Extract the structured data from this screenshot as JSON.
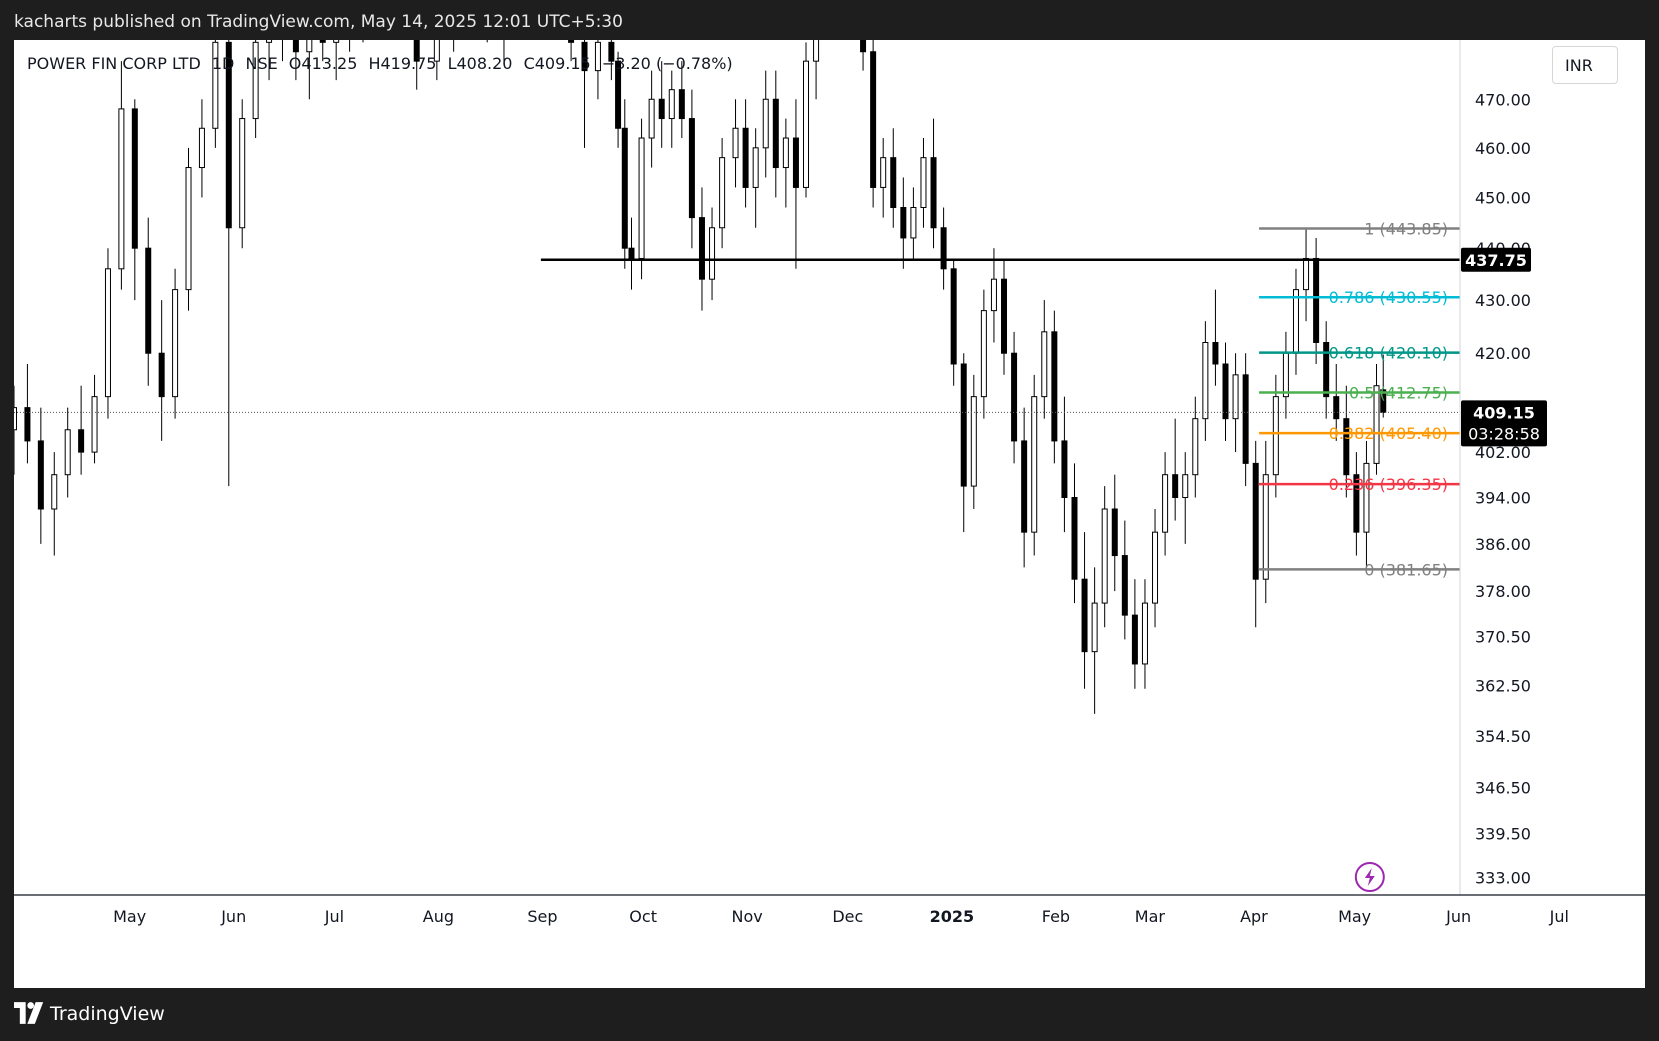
{
  "header": {
    "publish_text": "kacharts published on TradingView.com, May 14, 2025 12:01 UTC+5:30"
  },
  "legend": {
    "symbol": "POWER FIN CORP LTD",
    "interval": "1D",
    "exchange": "NSE",
    "open": "O413.25",
    "high": "H419.75",
    "low": "L408.20",
    "close": "C409.15",
    "change": "−3.20 (−0.78%)"
  },
  "currency": "INR",
  "footer": {
    "brand": "TradingView"
  },
  "colors": {
    "up": "#ffffff",
    "down": "#000000",
    "fib_1": "#808080",
    "fib_0786": "#00bcd4",
    "fib_0618": "#009688",
    "fib_05": "#4caf50",
    "fib_0382": "#ff9800",
    "fib_0236": "#f23645",
    "fib_0": "#808080",
    "event_icon": "#9c27b0"
  },
  "chart_data": {
    "type": "candlestick",
    "y_axis": {
      "ticks": [
        "470.00",
        "460.00",
        "450.00",
        "440.00",
        "430.00",
        "420.00",
        "402.00",
        "394.00",
        "386.00",
        "378.00",
        "370.50",
        "362.50",
        "354.50",
        "346.50",
        "339.50",
        "333.00"
      ],
      "tick_values": [
        470,
        460,
        450,
        440,
        430,
        420,
        402,
        394,
        386,
        378,
        370.5,
        362.5,
        354.5,
        346.5,
        339.5,
        333
      ],
      "range": [
        330.4,
        482.5
      ],
      "scale": "log"
    },
    "x_axis": {
      "labels": [
        "May",
        "Jun",
        "Jul",
        "Aug",
        "Sep",
        "Oct",
        "Nov",
        "Dec",
        "2025",
        "Feb",
        "Mar",
        "Apr",
        "May",
        "Jun",
        "Jul"
      ],
      "label_dates": [
        "2024-05-01",
        "2024-06-01",
        "2024-07-01",
        "2024-08-01",
        "2024-09-01",
        "2024-10-01",
        "2024-11-01",
        "2024-12-01",
        "2025-01-01",
        "2025-02-01",
        "2025-03-01",
        "2025-04-01",
        "2025-05-01",
        "2025-06-01",
        "2025-07-01"
      ],
      "range": [
        "2024-04-01",
        "2025-07-31"
      ]
    },
    "horizontal_line": {
      "value": 437.75,
      "label": "437.75",
      "from": "2024-09-05"
    },
    "last_price": {
      "value": 409.15,
      "label": "409.15",
      "countdown": "03:28:58"
    },
    "fibonacci": {
      "from_date": "2025-04-07",
      "to_date": "2025-06-28",
      "levels": [
        {
          "ratio": "1",
          "value": 443.85,
          "label": "1 (443.85)",
          "color": "#808080"
        },
        {
          "ratio": "0.786",
          "value": 430.55,
          "label": "0.786 (430.55)",
          "color": "#00bcd4"
        },
        {
          "ratio": "0.618",
          "value": 420.1,
          "label": "0.618 (420.10)",
          "color": "#009688"
        },
        {
          "ratio": "0.5",
          "value": 412.75,
          "label": "0.5 (412.75)",
          "color": "#4caf50"
        },
        {
          "ratio": "0.382",
          "value": 405.4,
          "label": "0.382 (405.40)",
          "color": "#ff9800"
        },
        {
          "ratio": "0.236",
          "value": 396.35,
          "label": "0.236 (396.35)",
          "color": "#f23645"
        },
        {
          "ratio": "0",
          "value": 381.65,
          "label": "0 (381.65)",
          "color": "#808080"
        }
      ]
    },
    "event_marker_date": "2025-05-10",
    "candles": [
      {
        "d": "2024-04-01",
        "o": 406,
        "h": 414,
        "l": 398,
        "c": 410
      },
      {
        "d": "2024-04-05",
        "o": 410,
        "h": 418,
        "l": 400,
        "c": 404
      },
      {
        "d": "2024-04-09",
        "o": 404,
        "h": 410,
        "l": 386,
        "c": 392
      },
      {
        "d": "2024-04-13",
        "o": 392,
        "h": 402,
        "l": 384,
        "c": 398
      },
      {
        "d": "2024-04-17",
        "o": 398,
        "h": 410,
        "l": 394,
        "c": 406
      },
      {
        "d": "2024-04-21",
        "o": 406,
        "h": 414,
        "l": 398,
        "c": 402
      },
      {
        "d": "2024-04-25",
        "o": 402,
        "h": 416,
        "l": 400,
        "c": 412
      },
      {
        "d": "2024-04-29",
        "o": 412,
        "h": 440,
        "l": 408,
        "c": 436
      },
      {
        "d": "2024-05-03",
        "o": 436,
        "h": 478,
        "l": 432,
        "c": 468
      },
      {
        "d": "2024-05-07",
        "o": 468,
        "h": 470,
        "l": 430,
        "c": 440
      },
      {
        "d": "2024-05-11",
        "o": 440,
        "h": 446,
        "l": 414,
        "c": 420
      },
      {
        "d": "2024-05-15",
        "o": 420,
        "h": 430,
        "l": 404,
        "c": 412
      },
      {
        "d": "2024-05-19",
        "o": 412,
        "h": 436,
        "l": 408,
        "c": 432
      },
      {
        "d": "2024-05-23",
        "o": 432,
        "h": 460,
        "l": 428,
        "c": 456
      },
      {
        "d": "2024-05-27",
        "o": 456,
        "h": 470,
        "l": 450,
        "c": 464
      },
      {
        "d": "2024-05-31",
        "o": 464,
        "h": 488,
        "l": 460,
        "c": 482
      },
      {
        "d": "2024-06-04",
        "o": 482,
        "h": 486,
        "l": 396,
        "c": 444
      },
      {
        "d": "2024-06-08",
        "o": 444,
        "h": 470,
        "l": 440,
        "c": 466
      },
      {
        "d": "2024-06-12",
        "o": 466,
        "h": 488,
        "l": 462,
        "c": 482
      },
      {
        "d": "2024-06-16",
        "o": 482,
        "h": 490,
        "l": 474,
        "c": 486
      },
      {
        "d": "2024-06-20",
        "o": 486,
        "h": 492,
        "l": 478,
        "c": 484
      },
      {
        "d": "2024-06-24",
        "o": 484,
        "h": 490,
        "l": 474,
        "c": 480
      },
      {
        "d": "2024-06-28",
        "o": 480,
        "h": 488,
        "l": 470,
        "c": 486
      },
      {
        "d": "2024-07-02",
        "o": 486,
        "h": 492,
        "l": 478,
        "c": 482
      },
      {
        "d": "2024-07-06",
        "o": 482,
        "h": 490,
        "l": 474,
        "c": 486
      },
      {
        "d": "2024-07-10",
        "o": 486,
        "h": 494,
        "l": 480,
        "c": 488
      },
      {
        "d": "2024-07-14",
        "o": 488,
        "h": 495,
        "l": 482,
        "c": 490
      },
      {
        "d": "2024-07-30",
        "o": 484,
        "h": 488,
        "l": 472,
        "c": 478
      },
      {
        "d": "2024-08-05",
        "o": 478,
        "h": 490,
        "l": 474,
        "c": 486
      },
      {
        "d": "2024-08-10",
        "o": 486,
        "h": 494,
        "l": 480,
        "c": 490
      },
      {
        "d": "2024-08-15",
        "o": 490,
        "h": 496,
        "l": 484,
        "c": 488
      },
      {
        "d": "2024-08-20",
        "o": 488,
        "h": 494,
        "l": 482,
        "c": 484
      },
      {
        "d": "2024-08-25",
        "o": 484,
        "h": 490,
        "l": 478,
        "c": 486
      },
      {
        "d": "2024-09-14",
        "o": 486,
        "h": 490,
        "l": 478,
        "c": 482
      },
      {
        "d": "2024-09-18",
        "o": 482,
        "h": 488,
        "l": 460,
        "c": 476
      },
      {
        "d": "2024-09-22",
        "o": 476,
        "h": 486,
        "l": 470,
        "c": 482
      },
      {
        "d": "2024-09-26",
        "o": 482,
        "h": 490,
        "l": 474,
        "c": 478
      },
      {
        "d": "2024-09-28",
        "o": 478,
        "h": 480,
        "l": 460,
        "c": 464
      },
      {
        "d": "2024-09-30",
        "o": 464,
        "h": 470,
        "l": 436,
        "c": 440
      },
      {
        "d": "2024-10-02",
        "o": 440,
        "h": 446,
        "l": 432,
        "c": 438
      },
      {
        "d": "2024-10-05",
        "o": 438,
        "h": 466,
        "l": 434,
        "c": 462
      },
      {
        "d": "2024-10-08",
        "o": 462,
        "h": 476,
        "l": 456,
        "c": 470
      },
      {
        "d": "2024-10-11",
        "o": 470,
        "h": 478,
        "l": 460,
        "c": 466
      },
      {
        "d": "2024-10-14",
        "o": 466,
        "h": 476,
        "l": 460,
        "c": 472
      },
      {
        "d": "2024-10-17",
        "o": 472,
        "h": 478,
        "l": 462,
        "c": 466
      },
      {
        "d": "2024-10-20",
        "o": 466,
        "h": 472,
        "l": 440,
        "c": 446
      },
      {
        "d": "2024-10-23",
        "o": 446,
        "h": 452,
        "l": 428,
        "c": 434
      },
      {
        "d": "2024-10-26",
        "o": 434,
        "h": 448,
        "l": 430,
        "c": 444
      },
      {
        "d": "2024-10-29",
        "o": 444,
        "h": 462,
        "l": 440,
        "c": 458
      },
      {
        "d": "2024-11-02",
        "o": 458,
        "h": 470,
        "l": 452,
        "c": 464
      },
      {
        "d": "2024-11-05",
        "o": 464,
        "h": 470,
        "l": 448,
        "c": 452
      },
      {
        "d": "2024-11-08",
        "o": 452,
        "h": 464,
        "l": 444,
        "c": 460
      },
      {
        "d": "2024-11-11",
        "o": 460,
        "h": 476,
        "l": 454,
        "c": 470
      },
      {
        "d": "2024-11-14",
        "o": 470,
        "h": 476,
        "l": 450,
        "c": 456
      },
      {
        "d": "2024-11-17",
        "o": 456,
        "h": 466,
        "l": 448,
        "c": 462
      },
      {
        "d": "2024-11-20",
        "o": 462,
        "h": 470,
        "l": 436,
        "c": 452
      },
      {
        "d": "2024-11-23",
        "o": 452,
        "h": 482,
        "l": 450,
        "c": 478
      },
      {
        "d": "2024-11-26",
        "o": 478,
        "h": 488,
        "l": 470,
        "c": 484
      },
      {
        "d": "2024-12-10",
        "o": 486,
        "h": 490,
        "l": 476,
        "c": 480
      },
      {
        "d": "2024-12-13",
        "o": 480,
        "h": 484,
        "l": 448,
        "c": 452
      },
      {
        "d": "2024-12-16",
        "o": 452,
        "h": 462,
        "l": 446,
        "c": 458
      },
      {
        "d": "2024-12-19",
        "o": 458,
        "h": 464,
        "l": 444,
        "c": 448
      },
      {
        "d": "2024-12-22",
        "o": 448,
        "h": 454,
        "l": 436,
        "c": 442
      },
      {
        "d": "2024-12-25",
        "o": 442,
        "h": 452,
        "l": 438,
        "c": 448
      },
      {
        "d": "2024-12-28",
        "o": 448,
        "h": 462,
        "l": 444,
        "c": 458
      },
      {
        "d": "2024-12-31",
        "o": 458,
        "h": 466,
        "l": 440,
        "c": 444
      },
      {
        "d": "2025-01-03",
        "o": 444,
        "h": 448,
        "l": 432,
        "c": 436
      },
      {
        "d": "2025-01-06",
        "o": 436,
        "h": 438,
        "l": 414,
        "c": 418
      },
      {
        "d": "2025-01-09",
        "o": 418,
        "h": 420,
        "l": 388,
        "c": 396
      },
      {
        "d": "2025-01-12",
        "o": 396,
        "h": 416,
        "l": 392,
        "c": 412
      },
      {
        "d": "2025-01-15",
        "o": 412,
        "h": 432,
        "l": 408,
        "c": 428
      },
      {
        "d": "2025-01-18",
        "o": 428,
        "h": 440,
        "l": 422,
        "c": 434
      },
      {
        "d": "2025-01-21",
        "o": 434,
        "h": 438,
        "l": 416,
        "c": 420
      },
      {
        "d": "2025-01-24",
        "o": 420,
        "h": 424,
        "l": 400,
        "c": 404
      },
      {
        "d": "2025-01-27",
        "o": 404,
        "h": 410,
        "l": 382,
        "c": 388
      },
      {
        "d": "2025-01-30",
        "o": 388,
        "h": 416,
        "l": 384,
        "c": 412
      },
      {
        "d": "2025-02-02",
        "o": 412,
        "h": 430,
        "l": 408,
        "c": 424
      },
      {
        "d": "2025-02-05",
        "o": 424,
        "h": 428,
        "l": 400,
        "c": 404
      },
      {
        "d": "2025-02-08",
        "o": 404,
        "h": 412,
        "l": 388,
        "c": 394
      },
      {
        "d": "2025-02-11",
        "o": 394,
        "h": 400,
        "l": 376,
        "c": 380
      },
      {
        "d": "2025-02-14",
        "o": 380,
        "h": 388,
        "l": 362,
        "c": 368
      },
      {
        "d": "2025-02-17",
        "o": 368,
        "h": 382,
        "l": 358,
        "c": 376
      },
      {
        "d": "2025-02-20",
        "o": 376,
        "h": 396,
        "l": 372,
        "c": 392
      },
      {
        "d": "2025-02-23",
        "o": 392,
        "h": 398,
        "l": 378,
        "c": 384
      },
      {
        "d": "2025-02-26",
        "o": 384,
        "h": 390,
        "l": 370,
        "c": 374
      },
      {
        "d": "2025-03-01",
        "o": 374,
        "h": 380,
        "l": 362,
        "c": 366
      },
      {
        "d": "2025-03-04",
        "o": 366,
        "h": 380,
        "l": 362,
        "c": 376
      },
      {
        "d": "2025-03-07",
        "o": 376,
        "h": 392,
        "l": 372,
        "c": 388
      },
      {
        "d": "2025-03-10",
        "o": 388,
        "h": 402,
        "l": 384,
        "c": 398
      },
      {
        "d": "2025-03-13",
        "o": 398,
        "h": 408,
        "l": 390,
        "c": 394
      },
      {
        "d": "2025-03-16",
        "o": 394,
        "h": 402,
        "l": 386,
        "c": 398
      },
      {
        "d": "2025-03-19",
        "o": 398,
        "h": 412,
        "l": 394,
        "c": 408
      },
      {
        "d": "2025-03-22",
        "o": 408,
        "h": 426,
        "l": 404,
        "c": 422
      },
      {
        "d": "2025-03-25",
        "o": 422,
        "h": 432,
        "l": 414,
        "c": 418
      },
      {
        "d": "2025-03-28",
        "o": 418,
        "h": 422,
        "l": 404,
        "c": 408
      },
      {
        "d": "2025-03-31",
        "o": 408,
        "h": 420,
        "l": 402,
        "c": 416
      },
      {
        "d": "2025-04-03",
        "o": 416,
        "h": 420,
        "l": 396,
        "c": 400
      },
      {
        "d": "2025-04-06",
        "o": 400,
        "h": 404,
        "l": 372,
        "c": 380
      },
      {
        "d": "2025-04-09",
        "o": 380,
        "h": 404,
        "l": 376,
        "c": 398
      },
      {
        "d": "2025-04-12",
        "o": 398,
        "h": 416,
        "l": 394,
        "c": 412
      },
      {
        "d": "2025-04-15",
        "o": 412,
        "h": 424,
        "l": 408,
        "c": 420
      },
      {
        "d": "2025-04-18",
        "o": 420,
        "h": 436,
        "l": 416,
        "c": 432
      },
      {
        "d": "2025-04-21",
        "o": 432,
        "h": 444,
        "l": 426,
        "c": 438
      },
      {
        "d": "2025-04-24",
        "o": 438,
        "h": 442,
        "l": 418,
        "c": 422
      },
      {
        "d": "2025-04-27",
        "o": 422,
        "h": 426,
        "l": 408,
        "c": 412
      },
      {
        "d": "2025-04-30",
        "o": 412,
        "h": 418,
        "l": 404,
        "c": 408
      },
      {
        "d": "2025-05-03",
        "o": 408,
        "h": 414,
        "l": 394,
        "c": 398
      },
      {
        "d": "2025-05-06",
        "o": 398,
        "h": 402,
        "l": 384,
        "c": 388
      },
      {
        "d": "2025-05-09",
        "o": 388,
        "h": 404,
        "l": 382,
        "c": 400
      },
      {
        "d": "2025-05-12",
        "o": 400,
        "h": 418,
        "l": 398,
        "c": 414
      },
      {
        "d": "2025-05-14",
        "o": 413.25,
        "h": 419.75,
        "l": 408.2,
        "c": 409.15
      }
    ]
  }
}
